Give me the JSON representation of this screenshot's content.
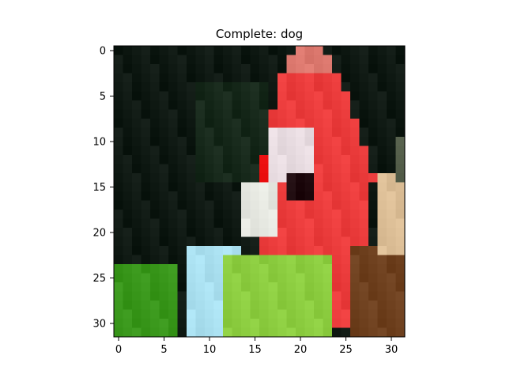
{
  "figure": {
    "title": "Complete: dog"
  },
  "axes": {
    "x_ticks": [
      "0",
      "5",
      "10",
      "15",
      "20",
      "25",
      "30"
    ],
    "y_ticks": [
      "0",
      "5",
      "10",
      "15",
      "20",
      "25",
      "30"
    ],
    "grid": false
  },
  "image": {
    "description_colors": {
      "background": "#0f1a14",
      "bird_head": "#f03a3a",
      "bird_white": "#e8e8e8",
      "bird_cheek_blue": "#a8dff0",
      "bird_chest_green": "#8ccf3c",
      "foliage_green": "#3f9b1c",
      "branch_brown": "#6b3a1c"
    }
  }
}
